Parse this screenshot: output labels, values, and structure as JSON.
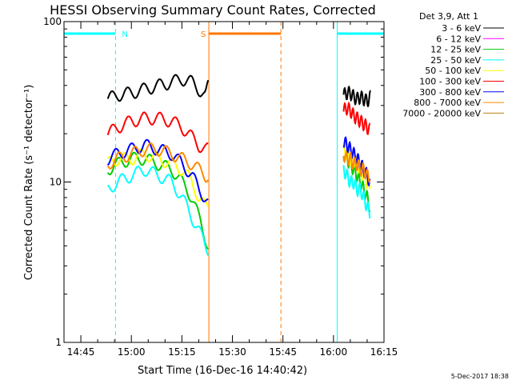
{
  "chart_data": {
    "type": "line",
    "title": "HESSI Observing Summary Count Rates, Corrected",
    "xlabel": "Start Time (16-Dec-16 14:40:42)",
    "ylabel": "Corrected Count Rate (s⁻¹ detector⁻¹)",
    "y_scale": "log",
    "ylim": [
      1,
      100
    ],
    "xlim_minutes_after_1440": [
      0,
      95
    ],
    "x_ticks": [
      {
        "label": "14:45",
        "minute": 5
      },
      {
        "label": "15:00",
        "minute": 20
      },
      {
        "label": "15:15",
        "minute": 35
      },
      {
        "label": "15:30",
        "minute": 50
      },
      {
        "label": "15:45",
        "minute": 65
      },
      {
        "label": "16:00",
        "minute": 80
      },
      {
        "label": "16:15",
        "minute": 95
      }
    ],
    "y_ticks": [
      {
        "label": "1",
        "value": 1
      },
      {
        "label": "10",
        "value": 10
      },
      {
        "label": "100",
        "value": 100
      }
    ],
    "legend_header": "Det 3,9, Att 1",
    "legend_position": "right",
    "series": [
      {
        "name": "3 - 6 keV",
        "color": "#000000",
        "segments": [
          {
            "x": [
              13.0,
              16,
              20,
              24,
              28,
              32,
              35,
              38,
              40,
              42,
              42.8
            ],
            "y": [
              33,
              35,
              36,
              38,
              40,
              42,
              44,
              42,
              38,
              34,
              40
            ]
          },
          {
            "x": [
              83.0,
              84,
              85,
              86,
              87,
              88,
              89,
              90,
              91.0
            ],
            "y": [
              35,
              36,
              36,
              34,
              33,
              34,
              33,
              32,
              34
            ]
          }
        ]
      },
      {
        "name": "6 - 12 keV",
        "color": "#ff00ff",
        "segments": []
      },
      {
        "name": "12 - 25 keV",
        "color": "#00cc00",
        "segments": [
          {
            "x": [
              13.0,
              16,
              20,
              24,
              28,
              32,
              35,
              38,
              40,
              42,
              42.8
            ],
            "y": [
              12,
              13,
              14,
              14,
              13,
              12,
              10,
              8,
              6,
              4.5,
              4
            ]
          },
          {
            "x": [
              83.0,
              84,
              85,
              86,
              87,
              88,
              89,
              90,
              90.8
            ],
            "y": [
              15,
              14,
              13,
              12,
              11,
              10,
              9,
              8,
              7
            ]
          }
        ]
      },
      {
        "name": "25 - 50 keV",
        "color": "#00ffff",
        "segments": [
          {
            "x": [
              13.0,
              16,
              20,
              24,
              28,
              32,
              35,
              38,
              40,
              42,
              42.8
            ],
            "y": [
              9,
              10,
              11,
              12,
              11,
              10,
              8,
              6,
              5,
              4,
              3.8
            ]
          },
          {
            "x": [
              83.0,
              84,
              85,
              86,
              87,
              88,
              89,
              90,
              90.8
            ],
            "y": [
              12,
              11,
              10,
              10,
              9,
              9,
              8,
              7,
              6.5
            ]
          }
        ]
      },
      {
        "name": "50 - 100 keV",
        "color": "#ffff00",
        "segments": [
          {
            "x": [
              13.0,
              16,
              20,
              24,
              28,
              32,
              35,
              38,
              40,
              42,
              42.8
            ],
            "y": [
              13,
              14,
              14,
              15,
              14,
              13,
              12,
              10,
              8,
              7,
              7
            ]
          },
          {
            "x": [
              83.0,
              84,
              85,
              86,
              87,
              88,
              89,
              90,
              90.8
            ],
            "y": [
              16,
              15,
              14,
              14,
              13,
              12,
              11,
              10,
              9
            ]
          }
        ]
      },
      {
        "name": "100 - 300 keV",
        "color": "#ff0000",
        "segments": [
          {
            "x": [
              13.0,
              16,
              20,
              24,
              28,
              32,
              35,
              38,
              40,
              42,
              42.8
            ],
            "y": [
              20,
              22,
              24,
              25,
              25,
              24,
              22,
              19,
              17,
              16,
              16
            ]
          },
          {
            "x": [
              83.0,
              84,
              85,
              86,
              87,
              88,
              89,
              90,
              90.8
            ],
            "y": [
              28,
              29,
              28,
              26,
              25,
              24,
              23,
              22,
              21
            ]
          }
        ]
      },
      {
        "name": "300 - 800 keV",
        "color": "#0000ff",
        "segments": [
          {
            "x": [
              13.0,
              16,
              20,
              24,
              28,
              32,
              35,
              38,
              40,
              42,
              42.8
            ],
            "y": [
              14,
              15,
              16,
              17,
              16,
              15,
              13,
              11,
              9,
              8,
              7.5
            ]
          },
          {
            "x": [
              83.0,
              84,
              85,
              86,
              87,
              88,
              89,
              90,
              90.8
            ],
            "y": [
              18,
              17,
              16,
              15,
              14,
              13,
              12,
              11,
              10
            ]
          }
        ]
      },
      {
        "name": "800 - 7000 keV",
        "color": "#ff8800",
        "segments": [
          {
            "x": [
              13.0,
              16,
              20,
              24,
              28,
              32,
              35,
              38,
              40,
              42,
              42.8
            ],
            "y": [
              13,
              14,
              15,
              16,
              16,
              15,
              14,
              13,
              12,
              11,
              11
            ]
          },
          {
            "x": [
              83.0,
              84,
              85,
              86,
              87,
              88,
              89,
              90,
              90.8
            ],
            "y": [
              15,
              14,
              14,
              13,
              13,
              12,
              12,
              11,
              11
            ]
          }
        ]
      },
      {
        "name": "7000 - 20000 keV",
        "color": "#b8860b",
        "segments": []
      }
    ],
    "flag_bars": [
      {
        "x": [
          0,
          15.3
        ],
        "color": "#00ffff"
      },
      {
        "x": [
          43.0,
          64.4
        ],
        "color": "#ff7700"
      },
      {
        "x": [
          81.1,
          95
        ],
        "color": "#00ffff"
      }
    ],
    "markers": [
      {
        "minute": 15.3,
        "color": "#00ffff",
        "style": "dashed",
        "label": "N"
      },
      {
        "minute": 43.0,
        "color": "#ff7700",
        "style": "solid",
        "label": "S"
      },
      {
        "minute": 64.4,
        "color": "#ff7700",
        "style": "dashed",
        "label": ""
      },
      {
        "minute": 81.1,
        "color": "#00ffff",
        "style": "solid",
        "label": ""
      },
      {
        "minute": 95.0,
        "color": "#00ffff",
        "style": "dashed",
        "label": ""
      }
    ]
  },
  "footer": {
    "date_stamp": "5-Dec-2017 18:38"
  }
}
